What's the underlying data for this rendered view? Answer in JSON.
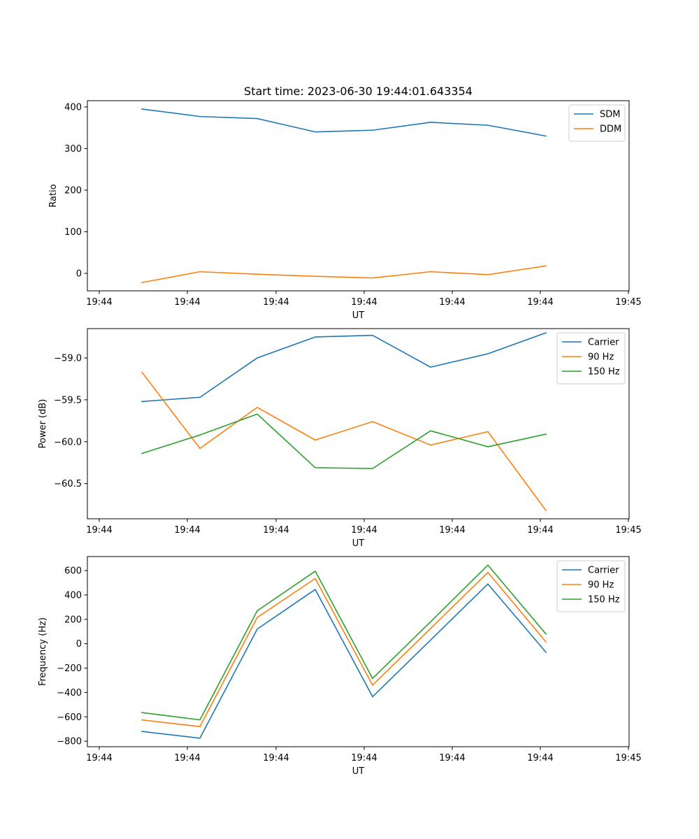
{
  "chart_data": [
    {
      "type": "line",
      "title": "Start time: 2023-06-30 19:44:01.643354",
      "xlabel": "UT",
      "ylabel": "Ratio",
      "x_tick_labels": [
        "19:44",
        "19:44",
        "19:44",
        "19:44",
        "19:44",
        "19:44",
        "19:45"
      ],
      "y_ticks": [
        0,
        100,
        200,
        300,
        400
      ],
      "ylim": [
        -42,
        415
      ],
      "legend_position": "upper-right",
      "series": [
        {
          "name": "SDM",
          "color": "#1f77b4",
          "values": [
            395,
            377,
            372,
            340,
            344,
            363,
            356,
            330
          ]
        },
        {
          "name": "DDM",
          "color": "#ff7f0e",
          "values": [
            -22,
            4,
            -2,
            -7,
            -11,
            4,
            -3,
            18
          ]
        }
      ]
    },
    {
      "type": "line",
      "title": "",
      "xlabel": "UT",
      "ylabel": "Power (dB)",
      "x_tick_labels": [
        "19:44",
        "19:44",
        "19:44",
        "19:44",
        "19:44",
        "19:44",
        "19:45"
      ],
      "y_ticks": [
        -60.5,
        -60.0,
        -59.5,
        -59.0
      ],
      "y_tick_labels": [
        "−60.5",
        "−60.0",
        "−59.5",
        "−59.0"
      ],
      "ylim": [
        -60.92,
        -58.65
      ],
      "legend_position": "upper-right",
      "series": [
        {
          "name": "Carrier",
          "color": "#1f77b4",
          "values": [
            -59.52,
            -59.47,
            -59.0,
            -58.75,
            -58.73,
            -59.11,
            -58.95,
            -58.7
          ]
        },
        {
          "name": "90 Hz",
          "color": "#ff7f0e",
          "values": [
            -59.17,
            -60.08,
            -59.59,
            -59.98,
            -59.76,
            -60.04,
            -59.88,
            -60.82
          ]
        },
        {
          "name": "150 Hz",
          "color": "#2ca02c",
          "values": [
            -60.14,
            -59.92,
            -59.67,
            -60.31,
            -60.32,
            -59.87,
            -60.06,
            -59.91
          ]
        }
      ]
    },
    {
      "type": "line",
      "title": "",
      "xlabel": "UT",
      "ylabel": "Frequency (Hz)",
      "x_tick_labels": [
        "19:44",
        "19:44",
        "19:44",
        "19:44",
        "19:44",
        "19:44",
        "19:45"
      ],
      "y_ticks": [
        -800,
        -600,
        -400,
        -200,
        0,
        200,
        400,
        600
      ],
      "y_tick_labels": [
        "−800",
        "−600",
        "−400",
        "−200",
        "0",
        "200",
        "400",
        "600"
      ],
      "ylim": [
        -845,
        715
      ],
      "legend_position": "upper-right",
      "series": [
        {
          "name": "Carrier",
          "color": "#1f77b4",
          "values": [
            -720,
            -775,
            120,
            445,
            -435,
            30,
            490,
            -70
          ]
        },
        {
          "name": "90 Hz",
          "color": "#ff7f0e",
          "values": [
            -625,
            -680,
            215,
            535,
            -340,
            125,
            585,
            15
          ]
        },
        {
          "name": "150 Hz",
          "color": "#2ca02c",
          "values": [
            -565,
            -625,
            270,
            595,
            -285,
            180,
            645,
            80
          ]
        }
      ]
    }
  ]
}
